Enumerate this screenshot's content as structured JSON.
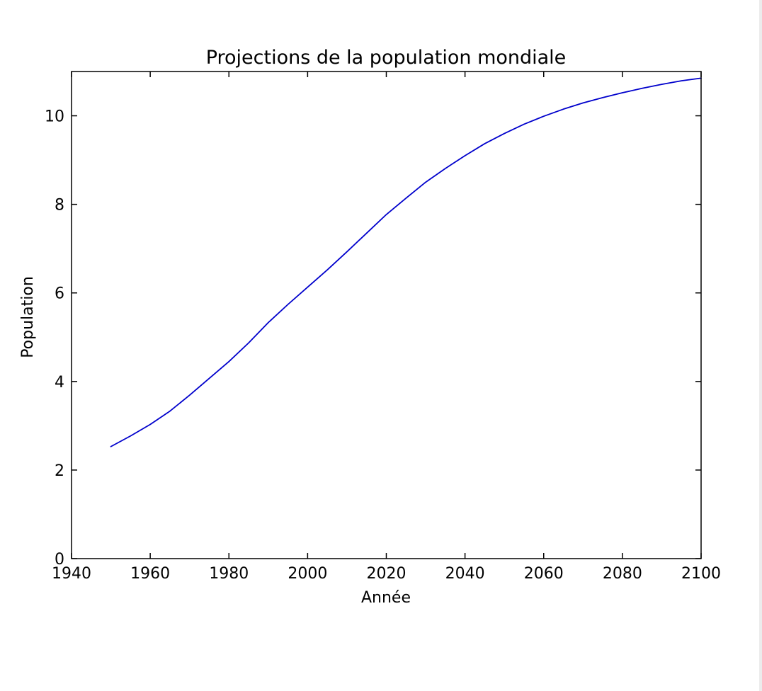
{
  "chart_data": {
    "type": "line",
    "title": "Projections de la population mondiale",
    "xlabel": "Année",
    "ylabel": "Population",
    "xlim": [
      1940,
      2100
    ],
    "ylim": [
      0,
      11
    ],
    "x_ticks": [
      1940,
      1960,
      1980,
      2000,
      2020,
      2040,
      2060,
      2080,
      2100
    ],
    "y_ticks": [
      0,
      2,
      4,
      6,
      8,
      10
    ],
    "x_tick_labels": [
      "1940",
      "1960",
      "1980",
      "2000",
      "2020",
      "2040",
      "2060",
      "2080",
      "2100"
    ],
    "y_tick_labels": [
      "0",
      "2",
      "4",
      "6",
      "8",
      "10"
    ],
    "grid": false,
    "line_color": "#0000cc",
    "series": [
      {
        "x": [
          1950,
          1955,
          1960,
          1965,
          1970,
          1975,
          1980,
          1985,
          1990,
          1995,
          2000,
          2005,
          2010,
          2015,
          2020,
          2025,
          2030,
          2035,
          2040,
          2045,
          2050,
          2055,
          2060,
          2065,
          2070,
          2075,
          2080,
          2085,
          2090,
          2095,
          2100
        ],
        "values": [
          2.53,
          2.77,
          3.03,
          3.33,
          3.69,
          4.07,
          4.45,
          4.87,
          5.33,
          5.74,
          6.13,
          6.52,
          6.93,
          7.35,
          7.77,
          8.14,
          8.5,
          8.81,
          9.1,
          9.37,
          9.6,
          9.81,
          9.99,
          10.15,
          10.29,
          10.41,
          10.52,
          10.62,
          10.71,
          10.79,
          10.85
        ]
      }
    ]
  }
}
